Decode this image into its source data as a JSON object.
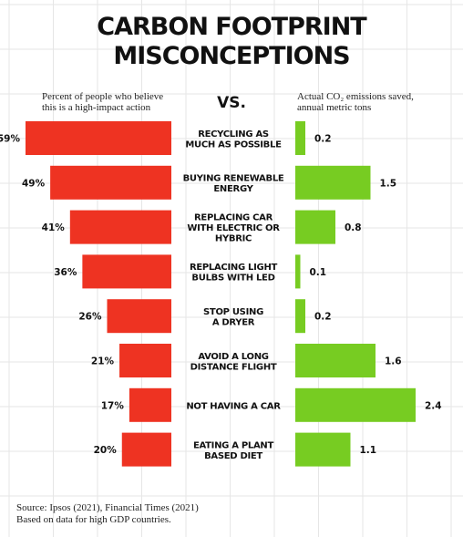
{
  "header": {
    "title_line1": "CARBON FOOTPRINT",
    "title_line2": "MISCONCEPTIONS",
    "left_label": "Percent of people who believe\nthis is a high-impact action",
    "vs": "VS.",
    "right_label": "Actual CO₂ emissions saved,\nannual metric tons"
  },
  "footer": {
    "source": "Source: Ipsos (2021), Financial Times (2021)",
    "note": "Based on data for high GDP countries."
  },
  "colors": {
    "left_bar": "#ee3322",
    "right_bar": "#77cc22",
    "grid": "#e6e6e6",
    "text": "#111111"
  },
  "chart_data": {
    "type": "bar",
    "categories": [
      [
        "RECYCLING AS",
        "MUCH AS POSSIBLE"
      ],
      [
        "BUYING RENEWABLE",
        "ENERGY"
      ],
      [
        "REPLACING CAR",
        "WITH ELECTRIC OR",
        "HYBRIC"
      ],
      [
        "REPLACING LIGHT",
        "BULBS WITH LED"
      ],
      [
        "STOP USING",
        "A DRYER"
      ],
      [
        "AVOID A LONG",
        "DISTANCE FLIGHT"
      ],
      [
        "NOT HAVING A CAR"
      ],
      [
        "EATING A PLANT",
        "BASED DIET"
      ]
    ],
    "series": [
      {
        "name": "Percent of people who believe this is a high-impact action",
        "values": [
          59,
          49,
          41,
          36,
          26,
          21,
          17,
          20
        ],
        "labels": [
          "59%",
          "49%",
          "41%",
          "36%",
          "26%",
          "21%",
          "17%",
          "20%"
        ]
      },
      {
        "name": "Actual CO₂ emissions saved, annual metric tons",
        "values": [
          0.2,
          1.5,
          0.8,
          0.1,
          0.2,
          1.6,
          2.4,
          1.1
        ],
        "labels": [
          "0.2",
          "1.5",
          "0.8",
          "0.1",
          "0.2",
          "1.6",
          "2.4",
          "1.1"
        ]
      }
    ]
  }
}
